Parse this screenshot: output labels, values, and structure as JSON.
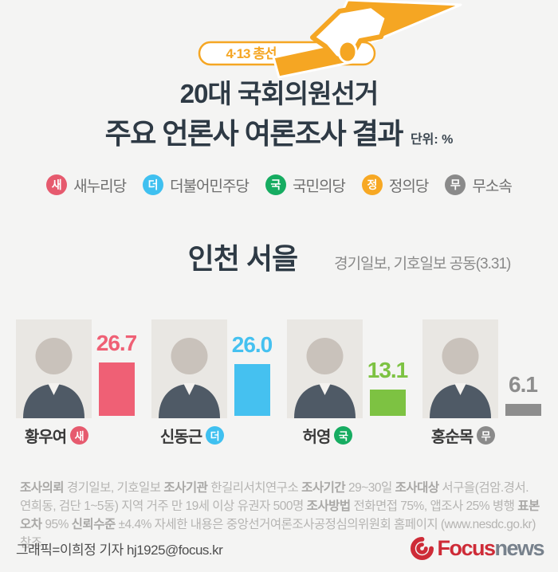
{
  "badge": {
    "label": "4·13 총선",
    "accent_color": "#f5a623"
  },
  "title": {
    "line1": "20대 국회의원선거",
    "line2": "주요 언론사 여론조사 결과",
    "unit": "단위: %"
  },
  "legend": {
    "items": [
      {
        "symbol": "새",
        "label": "새누리당",
        "color": "#e65a6e"
      },
      {
        "symbol": "더",
        "label": "더불어민주당",
        "color": "#3fc0f0"
      },
      {
        "symbol": "국",
        "label": "국민의당",
        "color": "#16ac61"
      },
      {
        "symbol": "정",
        "label": "정의당",
        "color": "#f7a823"
      },
      {
        "symbol": "무",
        "label": "무소속",
        "color": "#8a8a8a"
      }
    ]
  },
  "region": {
    "name": "인천 서을",
    "source": "경기일보, 기호일보 공동(3.31)"
  },
  "chart_data": {
    "type": "bar",
    "title": "인천 서을",
    "unit": "%",
    "categories": [
      "황우여",
      "신동근",
      "허영",
      "홍순목"
    ],
    "values": [
      26.7,
      26.0,
      13.1,
      6.1
    ],
    "ylim": [
      0,
      30
    ],
    "grid": false,
    "candidates": [
      {
        "name": "황우여",
        "party": "새",
        "value": 26.7,
        "value_label": "26.7",
        "bar_color": "#ef6075",
        "badge_color": "#e65a6e"
      },
      {
        "name": "신동근",
        "party": "더",
        "value": 26.0,
        "value_label": "26.0",
        "bar_color": "#45c1f0",
        "badge_color": "#3fc0f0"
      },
      {
        "name": "허영",
        "party": "국",
        "value": 13.1,
        "value_label": "13.1",
        "bar_color": "#7dc242",
        "badge_color": "#16ac61"
      },
      {
        "name": "홍순목",
        "party": "무",
        "value": 6.1,
        "value_label": "6.1",
        "bar_color": "#8d8d8d",
        "badge_color": "#8a8a8a"
      }
    ]
  },
  "notes": {
    "segments": [
      {
        "t": "조사의뢰",
        "b": true
      },
      {
        "t": " 경기일보, 기호일보 ",
        "b": false
      },
      {
        "t": "조사기관",
        "b": true
      },
      {
        "t": " 한길리서치연구소 ",
        "b": false
      },
      {
        "t": "조사기간",
        "b": true
      },
      {
        "t": " 29~30일 ",
        "b": false
      },
      {
        "t": "조사대상",
        "b": true
      },
      {
        "t": " 서구을(검암.경서. 연희동, 검단 1~5동) 지역 거주 만 19세 이상 유권자 500명 ",
        "b": false
      },
      {
        "t": "조사방법",
        "b": true
      },
      {
        "t": " 전화면접 75%, 앱조사 25% 병행 ",
        "b": false
      },
      {
        "t": "표본오차",
        "b": true
      },
      {
        "t": " 95% ",
        "b": false
      },
      {
        "t": "신뢰수준",
        "b": true
      },
      {
        "t": " ±4.4%  자세한 내용은 중앙선거여론조사공정심의위원회 홈페이지 (www.nesdc.go.kr) 참조",
        "b": false
      }
    ]
  },
  "credit": "그래픽=이희정 기자 hj1925@focus.kr",
  "logo": {
    "brand": "Focus",
    "suffix": "news",
    "brand_color": "#ce2b37",
    "suffix_color": "#77818c"
  }
}
